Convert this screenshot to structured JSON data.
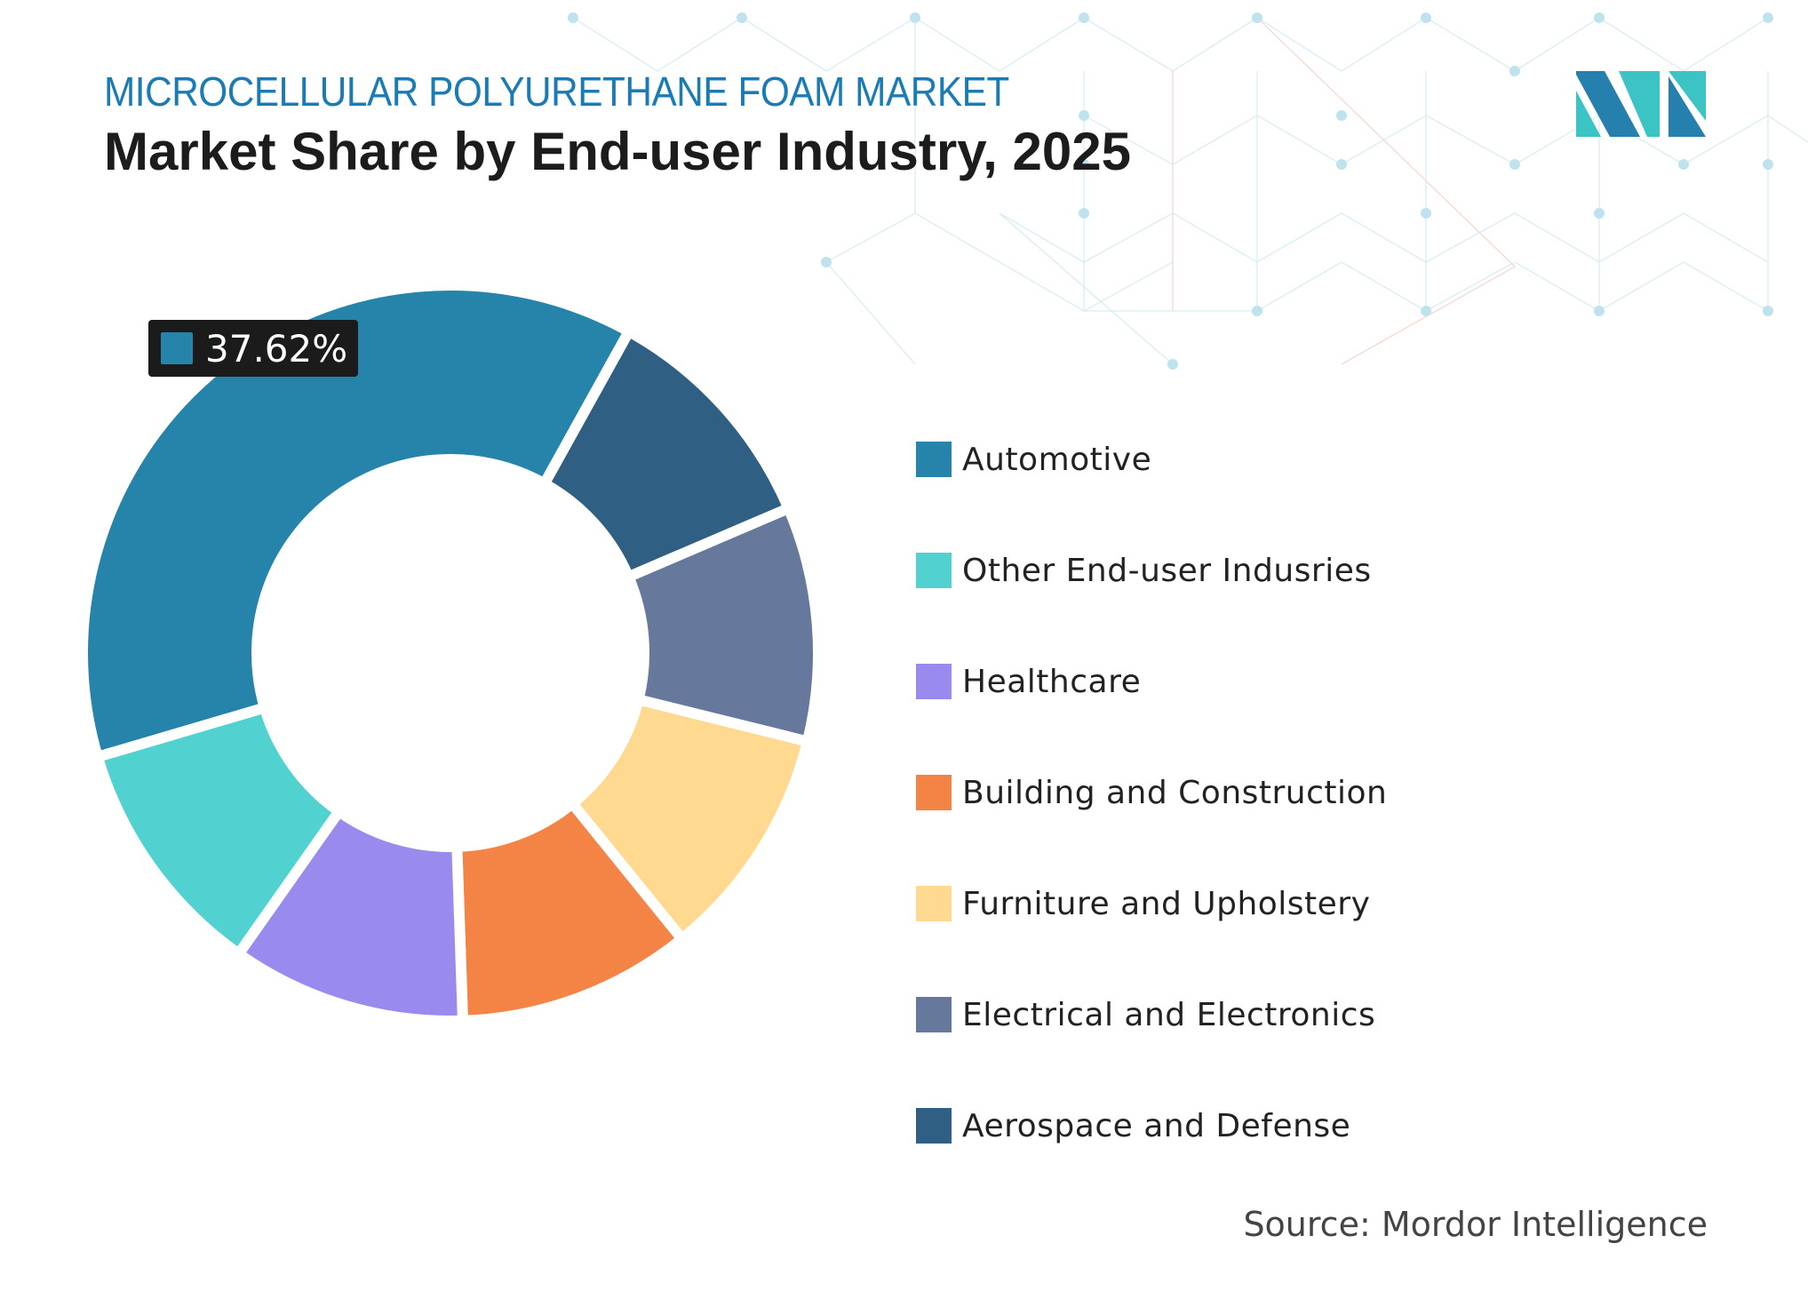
{
  "header": {
    "subtitle": "MICROCELLULAR POLYURETHANE FOAM MARKET",
    "title": "Market Share by End-user Industry, 2025"
  },
  "logo": {
    "icon": "mordor-intelligence-logo-icon",
    "colors": [
      "#2580ad",
      "#3cc3c4"
    ]
  },
  "tooltip": {
    "value": "37.62%",
    "color": "#2683a9"
  },
  "source": "Source: Mordor Intelligence",
  "legend": [
    {
      "label": "Automotive",
      "color": "#2683a9"
    },
    {
      "label": "Other End-user Indusries",
      "color": "#52d1d1"
    },
    {
      "label": "Healthcare",
      "color": "#998bee"
    },
    {
      "label": "Building and Construction",
      "color": "#f38446"
    },
    {
      "label": "Furniture and Upholstery",
      "color": "#fed98f"
    },
    {
      "label": "Electrical and Electronics",
      "color": "#66789b"
    },
    {
      "label": "Aerospace and Defense",
      "color": "#305f84"
    }
  ],
  "chart_data": {
    "type": "pie",
    "subtype": "donut",
    "title": "Market Share by End-user Industry, 2025",
    "subtitle": "MICROCELLULAR POLYURETHANE FOAM MARKET",
    "unit": "%",
    "start_angle_deg": 253.6,
    "direction": "clockwise",
    "slices": [
      {
        "label": "Automotive",
        "value": 37.62,
        "color": "#2683a9",
        "labeled": true
      },
      {
        "label": "Aerospace and Defense",
        "value": 10.5,
        "color": "#305f84"
      },
      {
        "label": "Electrical and Electronics",
        "value": 10.3,
        "color": "#66789b"
      },
      {
        "label": "Furniture and Upholstery",
        "value": 10.3,
        "color": "#fed98f"
      },
      {
        "label": "Building and Construction",
        "value": 10.3,
        "color": "#f38446"
      },
      {
        "label": "Healthcare",
        "value": 10.3,
        "color": "#998bee"
      },
      {
        "label": "Other End-user Indusries",
        "value": 10.68,
        "color": "#52d1d1"
      }
    ],
    "legend_position": "right",
    "annotations": [
      "37.62%"
    ],
    "source": "Source: Mordor Intelligence"
  }
}
